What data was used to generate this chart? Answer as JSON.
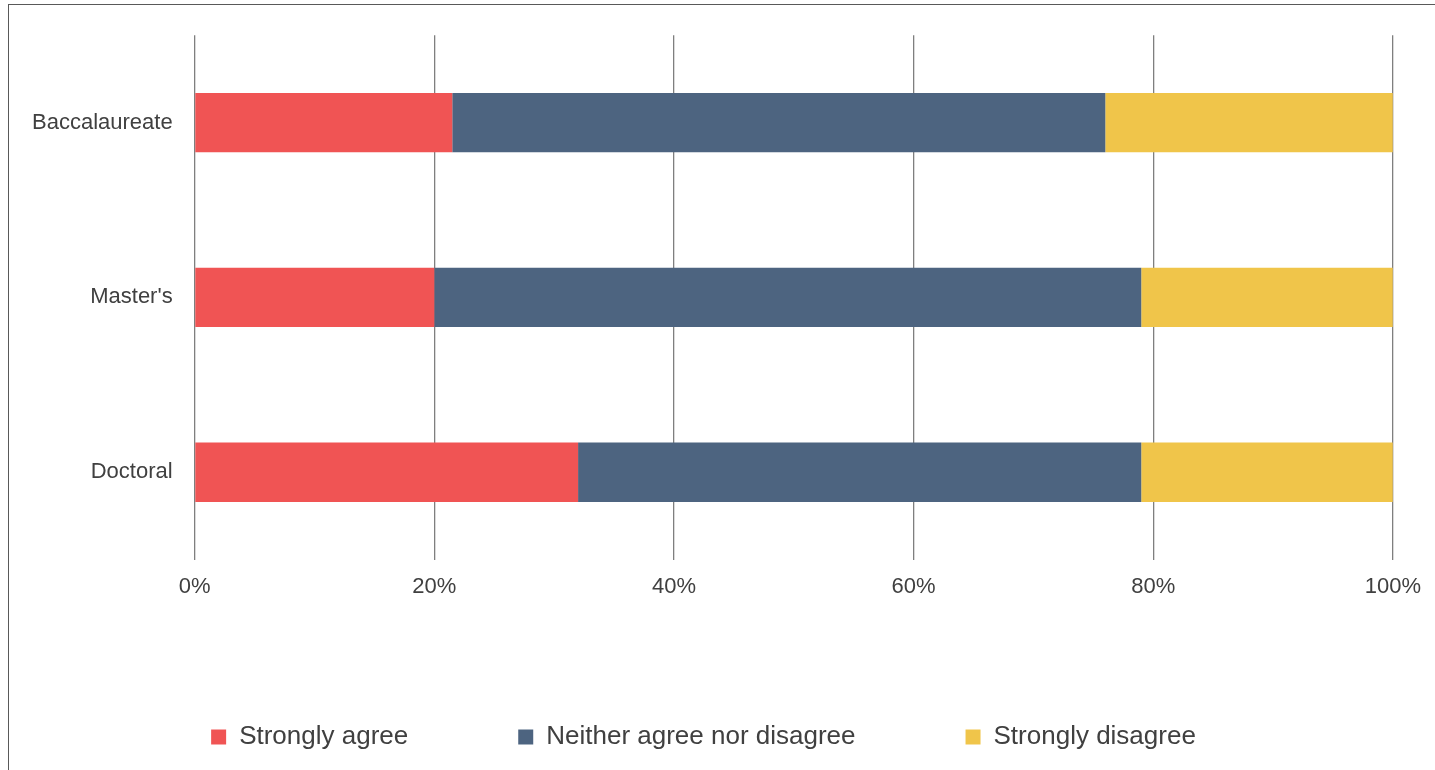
{
  "chart_data": {
    "type": "bar",
    "orientation": "horizontal",
    "stacked": true,
    "categories": [
      "Baccalaureate",
      "Master's",
      "Doctoral"
    ],
    "series": [
      {
        "name": "Strongly agree",
        "color": "#f05454",
        "values": [
          21.5,
          20,
          32
        ]
      },
      {
        "name": "Neither agree nor disagree",
        "color": "#4d6480",
        "values": [
          54.5,
          59,
          47
        ]
      },
      {
        "name": "Strongly disagree",
        "color": "#f0c54a",
        "values": [
          24,
          21,
          21
        ]
      }
    ],
    "xlim": [
      0,
      100
    ],
    "xticks": [
      {
        "value": 0,
        "label": "0%"
      },
      {
        "value": 20,
        "label": "20%"
      },
      {
        "value": 40,
        "label": "40%"
      },
      {
        "value": 60,
        "label": "60%"
      },
      {
        "value": 80,
        "label": "80%"
      },
      {
        "value": 100,
        "label": "100%"
      }
    ],
    "grid": "x",
    "legend": "bottom"
  }
}
